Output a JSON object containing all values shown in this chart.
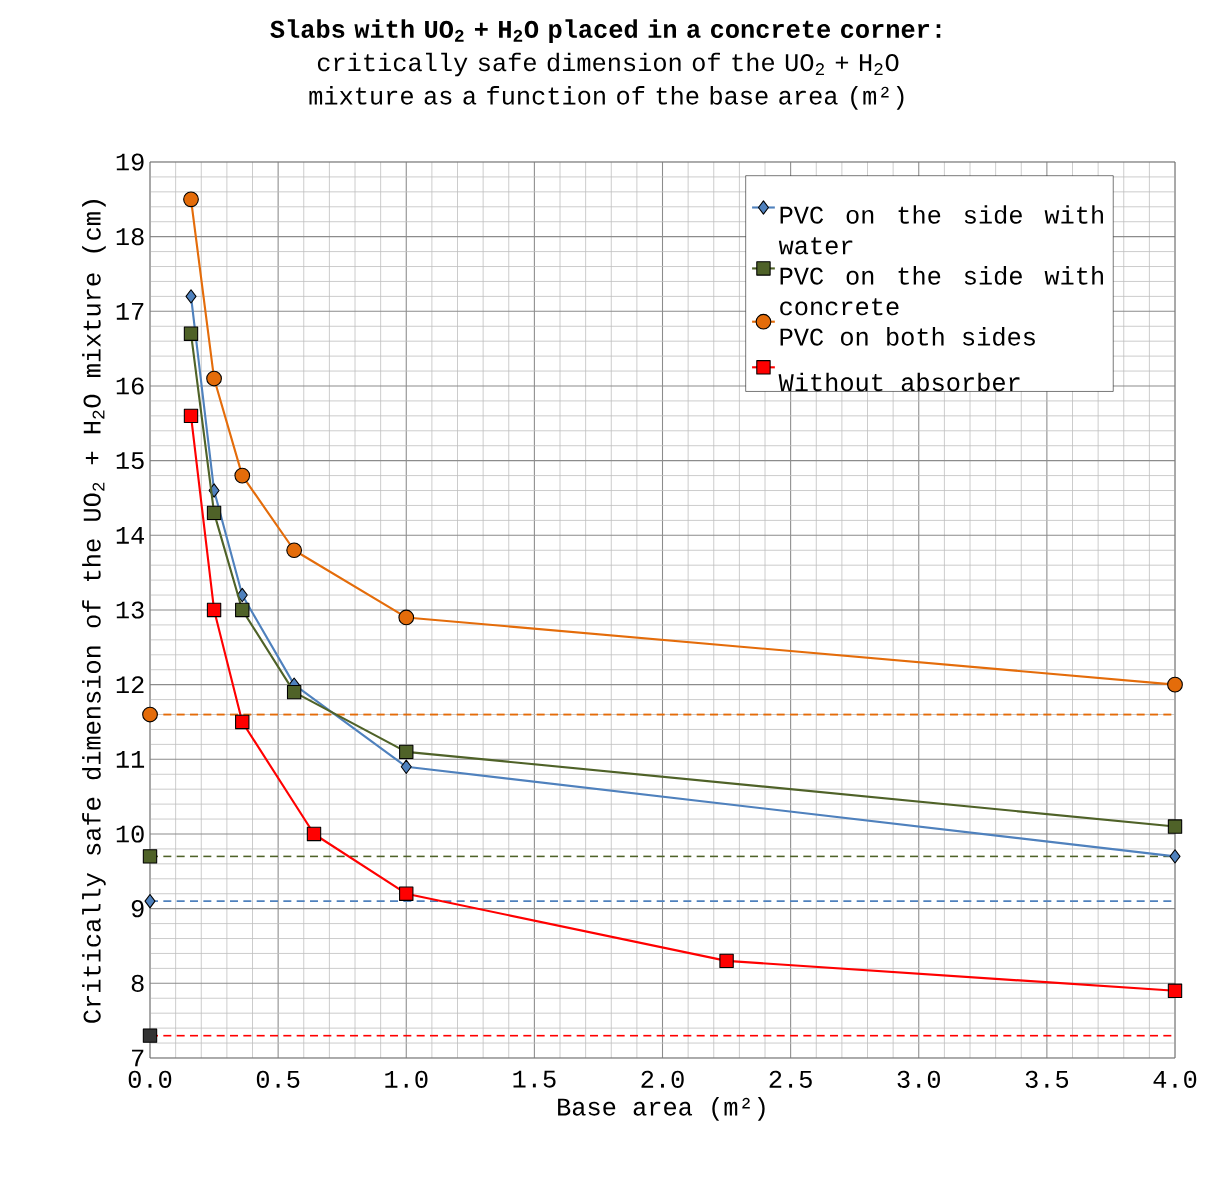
{
  "chart_data": {
    "type": "line",
    "title": "Slabs with UO$_{2}$ + H$_{2}$O placed in a concrete corner:",
    "subtitle": "critically safe dimension of the UO$_{2}$ + H$_{2}$O mixture as a function of the base area (m²)",
    "xlabel": "Base area (m²)",
    "ylabel": "Critically safe dimension of the UO$_{2}$ + H$_{2}$O mixture (cm)",
    "xlim": [
      0,
      4
    ],
    "ylim": [
      7,
      19
    ],
    "xticks": [
      {
        "value": 0,
        "label": "0.0"
      },
      {
        "value": 0.5,
        "label": "0.5"
      },
      {
        "value": 1,
        "label": "1.0"
      },
      {
        "value": 1.5,
        "label": "1.5"
      },
      {
        "value": 2,
        "label": "2.0"
      },
      {
        "value": 2.5,
        "label": "2.5"
      },
      {
        "value": 3,
        "label": "3.0"
      },
      {
        "value": 3.5,
        "label": "3.5"
      },
      {
        "value": 4,
        "label": "4.0"
      }
    ],
    "yticks": [
      7,
      8,
      9,
      10,
      11,
      12,
      13,
      14,
      15,
      16,
      17,
      18,
      19
    ],
    "grid": true,
    "legend": "top right",
    "series": [
      {
        "name": "PVC on the side with water",
        "color": "#4f81bd",
        "marker": "diamond",
        "x": [
          0.16,
          0.25,
          0.36,
          0.5625,
          1.0,
          4.0
        ],
        "values": [
          17.2,
          14.6,
          13.2,
          12.0,
          10.9,
          9.7
        ]
      },
      {
        "name": "PVC on the side with concrete",
        "color": "#4f6228",
        "marker": "square",
        "x": [
          0.16,
          0.25,
          0.36,
          0.5625,
          1.0,
          4.0
        ],
        "values": [
          16.7,
          14.3,
          13.0,
          11.9,
          11.1,
          10.1
        ]
      },
      {
        "name": "PVC on both sides",
        "color": "#e46c0a",
        "marker": "circle",
        "x": [
          0.16,
          0.25,
          0.36,
          0.5625,
          1.0,
          4.0
        ],
        "values": [
          18.5,
          16.1,
          14.8,
          13.8,
          12.9,
          12.0
        ]
      },
      {
        "name": "Without absorber",
        "color": "#ff0000",
        "marker": "square",
        "x": [
          0.16,
          0.25,
          0.36,
          0.64,
          1.0,
          2.25,
          4.0
        ],
        "values": [
          15.6,
          13.0,
          11.5,
          10.0,
          9.2,
          8.3,
          7.9
        ]
      },
      {
        "type": "scatter",
        "color": "#4f81bd",
        "marker": "diamond",
        "x": [
          0
        ],
        "values": [
          9.1
        ]
      },
      {
        "type": "scatter",
        "color": "#4f6228",
        "marker": "square",
        "x": [
          0
        ],
        "values": [
          9.7
        ]
      },
      {
        "type": "scatter",
        "color": "#e46c0a",
        "marker": "circle",
        "x": [
          0
        ],
        "values": [
          11.6
        ]
      },
      {
        "type": "scatter",
        "color": "#333333",
        "marker": "square",
        "x": [
          0
        ],
        "values": [
          7.3
        ]
      }
    ],
    "ref_lines": [
      {
        "axis": "y",
        "value": 9.1,
        "color": "#4f81bd",
        "line_style": "dashed"
      },
      {
        "axis": "y",
        "value": 9.7,
        "color": "#4f6228",
        "line_style": "dashed"
      },
      {
        "axis": "y",
        "value": 11.6,
        "color": "#e46c0a",
        "line_style": "dashed"
      },
      {
        "axis": "y",
        "value": 7.3,
        "color": "#ff0000",
        "line_style": "dashed"
      }
    ]
  }
}
